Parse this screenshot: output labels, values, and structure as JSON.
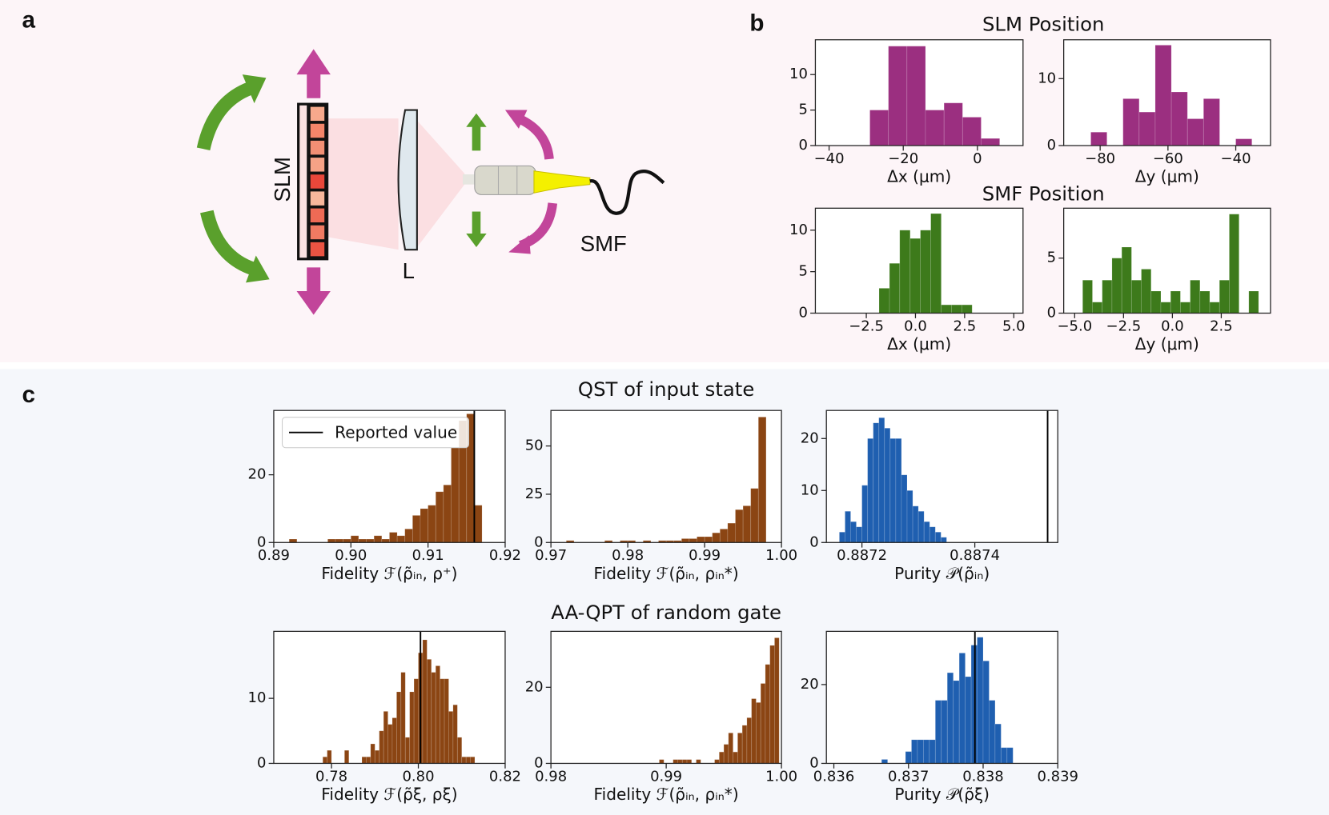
{
  "panels": [
    "a",
    "b",
    "c"
  ],
  "diagram": {
    "labels": [
      "SLM",
      "L",
      "SMF"
    ]
  },
  "group_titles": [
    "SLM Position",
    "SMF Position",
    "QST of input state",
    "AA-QPT of random gate"
  ],
  "chart_data": [
    {
      "type": "histogram",
      "xlabel": "Δx (μm)",
      "color": "#9b2f80",
      "bins": [
        -29,
        -24,
        -19,
        -14,
        -9,
        -4,
        1,
        6
      ],
      "values": [
        5,
        14,
        14,
        5,
        6,
        4,
        1
      ],
      "xlim": [
        -43.7,
        12.3
      ],
      "xticks": [
        {
          "value": -40,
          "label": "−40"
        },
        {
          "value": -20,
          "label": "−20"
        },
        0
      ],
      "ylim": [
        0,
        14.9
      ],
      "yticks": [
        0,
        5,
        10
      ]
    },
    {
      "type": "histogram",
      "xlabel": "Δy (μm)",
      "color": "#9b2f80",
      "bins": [
        -82.75,
        -78,
        -73.25,
        -68.5,
        -63.75,
        -59,
        -54.25,
        -49.5,
        -44.75,
        -40,
        -35.25
      ],
      "values": [
        2,
        0,
        7,
        5,
        15,
        8,
        4,
        7,
        0,
        1
      ],
      "xlim": [
        -90.75,
        -29.75
      ],
      "xticks": [
        {
          "value": -80,
          "label": "−80"
        },
        {
          "value": -60,
          "label": "−60"
        },
        {
          "value": -40,
          "label": "−40"
        }
      ],
      "ylim": [
        0,
        15.8
      ],
      "yticks": [
        0,
        10
      ]
    },
    {
      "type": "histogram",
      "xlabel": "Δx (μm)",
      "color": "#3d7a1b",
      "bins": [
        -1.85,
        -1.32,
        -0.8,
        -0.27,
        0.25,
        0.78,
        1.31,
        1.83,
        2.36,
        2.88
      ],
      "values": [
        3,
        6,
        10,
        9,
        10,
        12,
        1,
        1,
        1
      ],
      "xlim": [
        -5.09,
        5.47
      ],
      "xticks": [
        {
          "value": -2.5,
          "label": "−2.5"
        },
        {
          "value": 0,
          "label": "0.0"
        },
        2.5,
        {
          "value": 5,
          "label": "5.0"
        }
      ],
      "ylim": [
        0,
        12.65
      ],
      "yticks": [
        0,
        5,
        10
      ]
    },
    {
      "type": "histogram",
      "xlabel": "Δy (μm)",
      "color": "#3d7a1b",
      "bins": [
        -4.59,
        -4.09,
        -3.59,
        -3.09,
        -2.59,
        -2.09,
        -1.59,
        -1.09,
        -0.59,
        -0.09,
        0.41,
        0.91,
        1.41,
        1.91,
        2.41,
        2.91,
        3.41,
        3.91,
        4.41
      ],
      "values": [
        3,
        1,
        3,
        5,
        6,
        3,
        4,
        2,
        1,
        2,
        1,
        3,
        2,
        1,
        3,
        9,
        0,
        2
      ],
      "xlim": [
        -5.56,
        5.02
      ],
      "xticks": [
        {
          "value": -5,
          "label": "−5.0"
        },
        {
          "value": -2.5,
          "label": "−2.5"
        },
        {
          "value": 0,
          "label": "0.0"
        },
        2.5
      ],
      "ylim": [
        0,
        9.54
      ],
      "yticks": [
        0,
        5
      ]
    },
    {
      "type": "histogram",
      "xlabel": "Fidelity ℱ(ρ̃ᵢₙ, ρ⁺)",
      "color": "#8b4513",
      "bins": [
        0.892,
        0.893,
        0.894,
        0.895,
        0.896,
        0.897,
        0.898,
        0.899,
        0.9,
        0.901,
        0.902,
        0.903,
        0.904,
        0.905,
        0.906,
        0.907,
        0.908,
        0.909,
        0.91,
        0.911,
        0.912,
        0.913,
        0.914,
        0.915,
        0.916,
        0.917
      ],
      "values": [
        1,
        0,
        0,
        0,
        0,
        1,
        1,
        1,
        2,
        1,
        1,
        2,
        1,
        3,
        2,
        4,
        8,
        10,
        11,
        15,
        17,
        28,
        36,
        38,
        11
      ],
      "xlim": [
        0.89,
        0.92
      ],
      "xticks": [
        0.89,
        {
          "value": 0.9,
          "label": "0.90"
        },
        0.91,
        0.92
      ],
      "ylim": [
        0,
        39
      ],
      "yticks": [
        0,
        20
      ],
      "reference_line": 0.916,
      "legend_label": "Reported value",
      "legend": "upper left"
    },
    {
      "type": "histogram",
      "xlabel": "Fidelity ℱ(ρ̃ᵢₙ, ρᵢₙ*)",
      "color": "#8b4513",
      "bins": [
        0.972,
        0.973,
        0.974,
        0.975,
        0.976,
        0.977,
        0.978,
        0.979,
        0.98,
        0.981,
        0.982,
        0.983,
        0.984,
        0.985,
        0.986,
        0.987,
        0.988,
        0.989,
        0.99,
        0.991,
        0.992,
        0.993,
        0.994,
        0.995,
        0.996,
        0.997,
        0.998
      ],
      "values": [
        1,
        0,
        0,
        0,
        0,
        1,
        0,
        1,
        1,
        0,
        1,
        0,
        1,
        1,
        1,
        2,
        2,
        3,
        3,
        5,
        7,
        10,
        17,
        19,
        28,
        65
      ],
      "xlim": [
        0.97,
        1.0
      ],
      "xticks": [
        0.97,
        0.98,
        0.99,
        {
          "value": 1,
          "label": "1.00"
        }
      ],
      "ylim": [
        0,
        68.4
      ],
      "yticks": [
        0,
        25,
        50
      ]
    },
    {
      "type": "histogram",
      "xlabel": "Purity 𝒫(ρ̃ᵢₙ)",
      "color": "#1f5fb0",
      "bins": [
        0.88716,
        0.88717,
        0.88718,
        0.88719,
        0.8872,
        0.88721,
        0.88722,
        0.88723,
        0.88724,
        0.88725,
        0.88726,
        0.88727,
        0.88728,
        0.88729,
        0.8873,
        0.88731,
        0.88732,
        0.88733,
        0.88734,
        0.88735
      ],
      "values": [
        2,
        6,
        4,
        3,
        11,
        20,
        23,
        24,
        22,
        20,
        20,
        13,
        10,
        7,
        6,
        4,
        3,
        2,
        1
      ],
      "xlim": [
        0.887137,
        0.887547
      ],
      "xticks": [
        0.8872,
        0.8874
      ],
      "ylim": [
        0,
        25.4
      ],
      "yticks": [
        0,
        10,
        20
      ],
      "reference_line": 0.887529
    },
    {
      "type": "histogram",
      "xlabel": "Fidelity ℱ(ρ̃ξ, ρξ)",
      "color": "#8b4513",
      "bins": [
        0.778,
        0.779,
        0.78,
        0.781,
        0.782,
        0.783,
        0.784,
        0.785,
        0.786,
        0.787,
        0.788,
        0.789,
        0.79,
        0.791,
        0.792,
        0.793,
        0.794,
        0.795,
        0.796,
        0.797,
        0.798,
        0.799,
        0.8,
        0.801,
        0.802,
        0.803,
        0.804,
        0.805,
        0.806,
        0.807,
        0.808,
        0.809,
        0.81,
        0.811,
        0.812,
        0.813
      ],
      "values": [
        1,
        2,
        0,
        0,
        0,
        2,
        0,
        0,
        0,
        1,
        1,
        3,
        2,
        5,
        8,
        6,
        7,
        11,
        14,
        4,
        11,
        13,
        17,
        19,
        16,
        14,
        15,
        13,
        13,
        8,
        9,
        4,
        1,
        1,
        1
      ],
      "xlim": [
        0.7667,
        0.82
      ],
      "xticks": [
        0.78,
        {
          "value": 0.8,
          "label": "0.80"
        },
        0.82
      ],
      "ylim": [
        0,
        20.3
      ],
      "yticks": [
        0,
        10
      ],
      "reference_line": 0.8005
    },
    {
      "type": "histogram",
      "xlabel": "Fidelity ℱ(ρ̃ᵢₙ, ρᵢₙ*)",
      "color": "#8b4513",
      "bins": [
        0.9894,
        0.9898,
        0.9902,
        0.9906,
        0.991,
        0.9914,
        0.9918,
        0.9922,
        0.9926,
        0.993,
        0.9934,
        0.9938,
        0.9942,
        0.9946,
        0.995,
        0.9954,
        0.9958,
        0.9962,
        0.9966,
        0.997,
        0.9974,
        0.9978,
        0.9982,
        0.9986,
        0.999,
        0.9994,
        0.9998
      ],
      "values": [
        1,
        0,
        0,
        1,
        1,
        1,
        1,
        0,
        1,
        0,
        0,
        0,
        1,
        3,
        5,
        8,
        3,
        8,
        10,
        12,
        17,
        16,
        21,
        26,
        31,
        33
      ],
      "xlim": [
        0.98,
        1.0
      ],
      "xticks": [
        0.98,
        0.99,
        {
          "value": 1,
          "label": "1.00"
        }
      ],
      "ylim": [
        0,
        34.7
      ],
      "yticks": [
        0,
        20
      ]
    },
    {
      "type": "histogram",
      "xlabel": "Purity 𝒫(ρ̃ξ)",
      "color": "#1f5fb0",
      "bins": [
        0.83664,
        0.83672,
        0.8368,
        0.83688,
        0.83696,
        0.83704,
        0.83712,
        0.8372,
        0.83728,
        0.83736,
        0.83744,
        0.83752,
        0.8376,
        0.83768,
        0.83776,
        0.83784,
        0.83792,
        0.838,
        0.83808,
        0.83816,
        0.83824,
        0.83832,
        0.8384
      ],
      "values": [
        1,
        0,
        0,
        0,
        3,
        6,
        6,
        6,
        6,
        16,
        16,
        23,
        21,
        28,
        22,
        30,
        32,
        26,
        16,
        10,
        4,
        4
      ],
      "xlim": [
        0.8359,
        0.839
      ],
      "xticks": [
        0.836,
        0.837,
        0.838,
        0.839
      ],
      "ylim": [
        0,
        33.5
      ],
      "yticks": [
        0,
        20
      ],
      "reference_line": 0.83789
    }
  ]
}
